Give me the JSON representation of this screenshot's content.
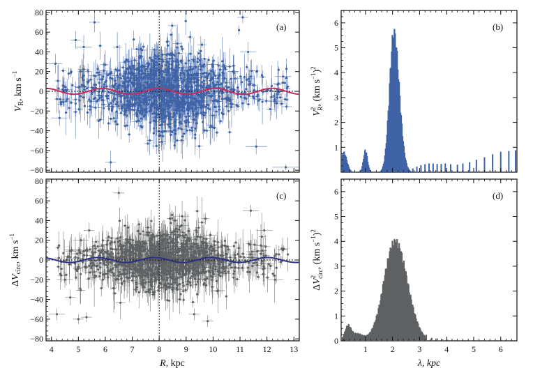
{
  "colors": {
    "blue": "#3f63a6",
    "gray": "#5f6163",
    "red": "#cc2a5a",
    "navy": "#2b2f8a",
    "axis": "#111111"
  },
  "labels": {
    "a": {
      "panel": "(a)",
      "ylabel_main": "V",
      "ylabel_sub": "R",
      "ylabel_unit": ", km s",
      "ylabel_exp": "−1"
    },
    "b": {
      "panel": "(b)",
      "ylabel_main": "V",
      "ylabel_sub": "R",
      "ylabel_sup": "2",
      "ylabel_unit": ", (km s",
      "ylabel_exp": "−1",
      "ylabel_close": ")",
      "ylabel_sq": "2"
    },
    "c": {
      "panel": "(c)",
      "ylabel_pre": "Δ",
      "ylabel_main": "V",
      "ylabel_sub": "circ",
      "ylabel_unit": ", km s",
      "ylabel_exp": "−1"
    },
    "d": {
      "panel": "(d)",
      "ylabel_pre": "Δ",
      "ylabel_main": "V",
      "ylabel_sub": "circ",
      "ylabel_sup": "2",
      "ylabel_unit": ", (km s",
      "ylabel_exp": "−1",
      "ylabel_close": ")",
      "ylabel_sq": "2"
    },
    "xlabel_left_main": "R",
    "xlabel_left_unit": ", kpc",
    "xlabel_right": "λ, kpc"
  },
  "chart_data": [
    {
      "id": "a",
      "type": "scatter",
      "title": "(a)",
      "xlabel": "",
      "ylabel": "V_R, km s^-1",
      "xlim": [
        3.8,
        13.2
      ],
      "ylim": [
        -82,
        82
      ],
      "yticks": [
        -80,
        -60,
        -40,
        -20,
        0,
        20,
        40,
        60,
        80
      ],
      "xticks": [
        4,
        5,
        6,
        7,
        8,
        9,
        10,
        11,
        12,
        13
      ],
      "show_xtick_labels": false,
      "vline_x": 8.0,
      "hline_y": 0,
      "scatter_seed": 11,
      "scatter_count": 1300,
      "scatter_sigma": 24,
      "outliers": [
        {
          "x": 4.15,
          "y": 28,
          "ex": 0.25,
          "ey": 10
        },
        {
          "x": 4.3,
          "y": -27,
          "ex": 0.3,
          "ey": 8
        },
        {
          "x": 4.9,
          "y": 52,
          "ex": 0.2,
          "ey": 9
        },
        {
          "x": 5.2,
          "y": 45,
          "ex": 0.3,
          "ey": 12
        },
        {
          "x": 5.6,
          "y": 70,
          "ex": 0.2,
          "ey": 10
        },
        {
          "x": 11.1,
          "y": 75,
          "ex": 0.2,
          "ey": 6
        },
        {
          "x": 11.3,
          "y": 40,
          "ex": 0.3,
          "ey": 10
        },
        {
          "x": 11.6,
          "y": -56,
          "ex": 0.4,
          "ey": 8
        },
        {
          "x": 12.3,
          "y": -10,
          "ex": 0.3,
          "ey": 10
        },
        {
          "x": 12.7,
          "y": -77,
          "ex": 0.5,
          "ey": 3
        },
        {
          "x": 12.6,
          "y": 15,
          "ex": 0.3,
          "ey": 6
        },
        {
          "x": 6.2,
          "y": -72,
          "ex": 0.2,
          "ey": 12
        }
      ],
      "fit": {
        "name": "periodic fit",
        "amplitude": 3,
        "wavelength": 2.1,
        "phase": 2.8
      }
    },
    {
      "id": "b",
      "type": "bar",
      "title": "(b)",
      "xlabel": "",
      "ylabel": "V_R^2, (km s^-1)^2",
      "xlim": [
        0.1,
        6.6
      ],
      "ylim": [
        0,
        6.5
      ],
      "yticks": [
        1,
        2,
        3,
        4,
        5,
        6
      ],
      "xticks": [
        1,
        2,
        3,
        4,
        5,
        6
      ],
      "show_xtick_labels": false,
      "peak_center": 2.05,
      "peak_amplitude": 5.85,
      "peak_width_left": 0.16,
      "peak_width_right": 0.2,
      "secondary_bumps": [
        {
          "center": 0.2,
          "amp": 0.85,
          "width": 0.12
        },
        {
          "center": 1.0,
          "amp": 0.95,
          "width": 0.08
        }
      ],
      "tail_bars": [
        {
          "x": 2.75,
          "y": 0.15
        },
        {
          "x": 2.9,
          "y": 0.22
        },
        {
          "x": 3.05,
          "y": 0.28
        },
        {
          "x": 3.2,
          "y": 0.32
        },
        {
          "x": 3.35,
          "y": 0.35
        },
        {
          "x": 3.5,
          "y": 0.35
        },
        {
          "x": 3.65,
          "y": 0.33
        },
        {
          "x": 3.8,
          "y": 0.33
        },
        {
          "x": 3.95,
          "y": 0.35
        },
        {
          "x": 4.15,
          "y": 0.32
        },
        {
          "x": 4.4,
          "y": 0.3
        },
        {
          "x": 4.6,
          "y": 0.35
        },
        {
          "x": 4.85,
          "y": 0.4
        },
        {
          "x": 5.1,
          "y": 0.5
        },
        {
          "x": 5.4,
          "y": 0.6
        },
        {
          "x": 5.7,
          "y": 0.72
        },
        {
          "x": 6.0,
          "y": 0.82
        },
        {
          "x": 6.3,
          "y": 0.85
        },
        {
          "x": 6.55,
          "y": 0.88
        }
      ]
    },
    {
      "id": "c",
      "type": "scatter",
      "title": "(c)",
      "xlabel": "R, kpc",
      "ylabel": "ΔV_circ, km s^-1",
      "xlim": [
        3.8,
        13.2
      ],
      "ylim": [
        -82,
        82
      ],
      "yticks": [
        -80,
        -60,
        -40,
        -20,
        0,
        20,
        40,
        60,
        80
      ],
      "xticks": [
        4,
        5,
        6,
        7,
        8,
        9,
        10,
        11,
        12,
        13
      ],
      "xtick_labels": [
        "4",
        "5",
        "6",
        "7",
        "8",
        "9",
        "10",
        "11",
        "12",
        "13"
      ],
      "vline_x": 8.0,
      "hline_y": 0,
      "scatter_seed": 23,
      "scatter_count": 1300,
      "scatter_sigma": 18,
      "outliers": [
        {
          "x": 4.2,
          "y": -55,
          "ex": 0.3,
          "ey": 6
        },
        {
          "x": 4.5,
          "y": -20,
          "ex": 0.3,
          "ey": 8
        },
        {
          "x": 4.7,
          "y": -38,
          "ex": 0.2,
          "ey": 8
        },
        {
          "x": 5.0,
          "y": -60,
          "ex": 0.2,
          "ey": 5
        },
        {
          "x": 5.3,
          "y": -58,
          "ex": 0.2,
          "ey": 5
        },
        {
          "x": 5.1,
          "y": 20,
          "ex": 0.3,
          "ey": 6
        },
        {
          "x": 5.4,
          "y": 30,
          "ex": 0.2,
          "ey": 8
        },
        {
          "x": 6.5,
          "y": 68,
          "ex": 0.2,
          "ey": 6
        },
        {
          "x": 11.4,
          "y": 50,
          "ex": 0.3,
          "ey": 6
        },
        {
          "x": 11.9,
          "y": 30,
          "ex": 0.3,
          "ey": 8
        },
        {
          "x": 12.3,
          "y": -20,
          "ex": 0.3,
          "ey": 5
        },
        {
          "x": 9.3,
          "y": -55,
          "ex": 0.2,
          "ey": 6
        },
        {
          "x": 9.8,
          "y": -62,
          "ex": 0.2,
          "ey": 6
        }
      ],
      "fit": {
        "name": "periodic fit",
        "amplitude": 2.5,
        "wavelength": 2.1,
        "phase": 3.3
      }
    },
    {
      "id": "d",
      "type": "bar",
      "title": "(d)",
      "xlabel": "λ, kpc",
      "ylabel": "ΔV_circ^2, (km s^-1)^2",
      "xlim": [
        0.1,
        6.6
      ],
      "ylim": [
        0,
        6.5
      ],
      "yticks": [
        0,
        1,
        2,
        3,
        4,
        5,
        6
      ],
      "xticks": [
        1,
        2,
        3,
        4,
        5,
        6
      ],
      "xtick_labels": [
        "1",
        "2",
        "3",
        "4",
        "5",
        "6"
      ],
      "peak_center": 2.1,
      "peak_amplitude": 4.15,
      "peak_width_left": 0.42,
      "peak_width_right": 0.45,
      "secondary_bumps": [
        {
          "center": 0.35,
          "amp": 0.62,
          "width": 0.12
        },
        {
          "center": 0.7,
          "amp": 0.3,
          "width": 0.2
        }
      ],
      "tail_bars": [
        {
          "x": 3.25,
          "y": 0.25
        },
        {
          "x": 3.45,
          "y": 0.12
        },
        {
          "x": 3.65,
          "y": 0.1
        },
        {
          "x": 3.85,
          "y": 0.06
        },
        {
          "x": 4.05,
          "y": 0.04
        },
        {
          "x": 4.3,
          "y": 0.03
        },
        {
          "x": 4.6,
          "y": 0.03
        },
        {
          "x": 4.9,
          "y": 0.02
        },
        {
          "x": 5.2,
          "y": 0.02
        },
        {
          "x": 5.5,
          "y": 0.02
        },
        {
          "x": 5.8,
          "y": 0.02
        },
        {
          "x": 6.1,
          "y": 0.02
        }
      ]
    }
  ]
}
